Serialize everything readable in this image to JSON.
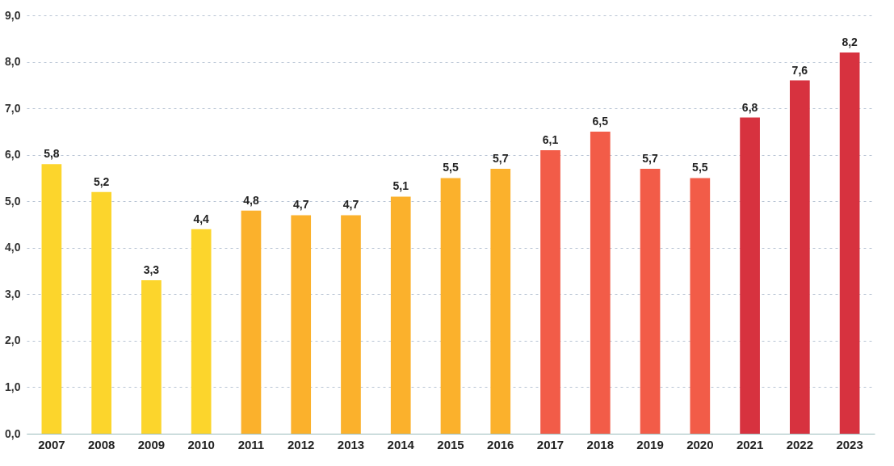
{
  "chart_data": {
    "type": "bar",
    "categories": [
      "2007",
      "2008",
      "2009",
      "2010",
      "2011",
      "2012",
      "2013",
      "2014",
      "2015",
      "2016",
      "2017",
      "2018",
      "2019",
      "2020",
      "2021",
      "2022",
      "2023"
    ],
    "values": [
      5.8,
      5.2,
      3.3,
      4.4,
      4.8,
      4.7,
      4.7,
      5.1,
      5.5,
      5.7,
      6.1,
      6.5,
      5.7,
      5.5,
      6.8,
      7.6,
      8.2
    ],
    "colors": [
      "#fcd52c",
      "#fcd52c",
      "#fcd52c",
      "#fcd52c",
      "#fbb12c",
      "#fbb12c",
      "#fbb12c",
      "#fbb12c",
      "#fbb12c",
      "#fbb12c",
      "#f25c48",
      "#f25c48",
      "#f25c48",
      "#f25c48",
      "#d7323f",
      "#d7323f",
      "#d7323f"
    ],
    "value_labels": [
      "5,8",
      "5,2",
      "3,3",
      "4,4",
      "4,8",
      "4,7",
      "4,7",
      "5,1",
      "5,5",
      "5,7",
      "6,1",
      "6,5",
      "5,7",
      "5,5",
      "6,8",
      "7,6",
      "8,2"
    ],
    "ylim": [
      0,
      9
    ],
    "yticks": [
      {
        "value": 0,
        "label": "0,0"
      },
      {
        "value": 1,
        "label": "1,0"
      },
      {
        "value": 2,
        "label": "2,0"
      },
      {
        "value": 3,
        "label": "3,0"
      },
      {
        "value": 4,
        "label": "4,0"
      },
      {
        "value": 5,
        "label": "5,0"
      },
      {
        "value": 6,
        "label": "6,0"
      },
      {
        "value": 7,
        "label": "7,0"
      },
      {
        "value": 8,
        "label": "8,0"
      },
      {
        "value": 9,
        "label": "9,0"
      }
    ],
    "grid": "y"
  }
}
